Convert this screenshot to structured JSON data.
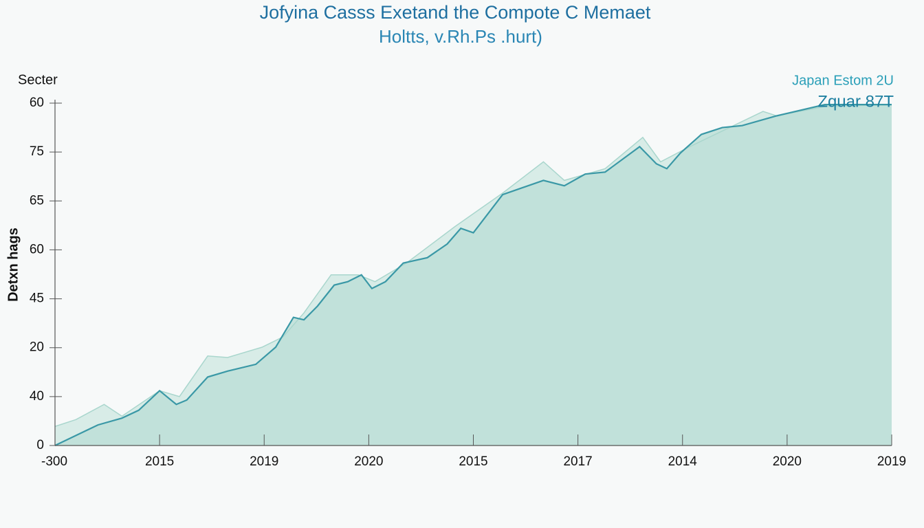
{
  "chart_data": {
    "type": "area",
    "title": "Jofyina Casss Exetand the Compote C Memaet",
    "subtitle": "Holtts, v.Rh.Ps .hurt)",
    "y_label_top": "Secter",
    "y_label": "Detxn hags",
    "xlim": [
      0,
      8
    ],
    "ylim": [
      0,
      70
    ],
    "xticks": [
      {
        "value": 0,
        "label": "-300"
      },
      {
        "value": 1,
        "label": "2015"
      },
      {
        "value": 2,
        "label": "2019"
      },
      {
        "value": 3,
        "label": "2020"
      },
      {
        "value": 4,
        "label": "2015"
      },
      {
        "value": 5,
        "label": "2017"
      },
      {
        "value": 6,
        "label": "2014"
      },
      {
        "value": 7,
        "label": "2020"
      },
      {
        "value": 8,
        "label": "2019"
      }
    ],
    "yticks": [
      0,
      {
        "value": 10,
        "label": "40"
      },
      {
        "value": 20,
        "label": "20"
      },
      {
        "value": 30,
        "label": "45"
      },
      {
        "value": 40,
        "label": "60"
      },
      {
        "value": 50,
        "label": "65"
      },
      {
        "value": 60,
        "label": "75"
      },
      {
        "value": 70,
        "label": "60"
      }
    ],
    "legend": "top-right",
    "series": [
      {
        "name": "Japan Estom 2U",
        "color": "#a9d6cd",
        "x": [
          0,
          0.2,
          0.47,
          0.64,
          1.0,
          1.19,
          1.46,
          1.65,
          1.98,
          2.18,
          2.38,
          2.64,
          2.9,
          3.06,
          3.36,
          3.82,
          4.28,
          4.67,
          4.87,
          5.26,
          5.62,
          5.79,
          6.05,
          6.77,
          6.9,
          7.36,
          8.0
        ],
        "values": [
          3.9,
          5.3,
          8.4,
          6.0,
          11.2,
          10.0,
          18.3,
          18.0,
          20.1,
          22.2,
          27.1,
          34.9,
          34.9,
          33.5,
          37.3,
          44.7,
          51.6,
          58.0,
          54.2,
          56.6,
          63.0,
          58.0,
          60.9,
          68.3,
          67.4,
          69.3,
          69.7
        ]
      },
      {
        "name": "Zquar 87T",
        "color": "#3a98a6",
        "x": [
          0,
          0.41,
          0.64,
          0.8,
          1.0,
          1.16,
          1.26,
          1.46,
          1.65,
          1.92,
          2.11,
          2.28,
          2.38,
          2.51,
          2.67,
          2.8,
          2.93,
          3.03,
          3.16,
          3.33,
          3.56,
          3.75,
          3.88,
          4.0,
          4.28,
          4.67,
          4.87,
          5.07,
          5.26,
          5.59,
          5.75,
          5.85,
          5.98,
          6.18,
          6.38,
          6.57,
          6.9,
          7.36,
          8.0
        ],
        "values": [
          0,
          4.2,
          5.6,
          7.2,
          11.2,
          8.4,
          9.3,
          14.0,
          15.2,
          16.6,
          20.1,
          26.2,
          25.7,
          28.5,
          32.8,
          33.5,
          34.9,
          32.1,
          33.5,
          37.3,
          38.4,
          41.2,
          44.4,
          43.5,
          51.3,
          54.2,
          53.1,
          55.5,
          55.9,
          61.1,
          57.6,
          56.6,
          59.8,
          63.6,
          65.0,
          65.4,
          67.4,
          69.7,
          69.7
        ]
      }
    ]
  }
}
